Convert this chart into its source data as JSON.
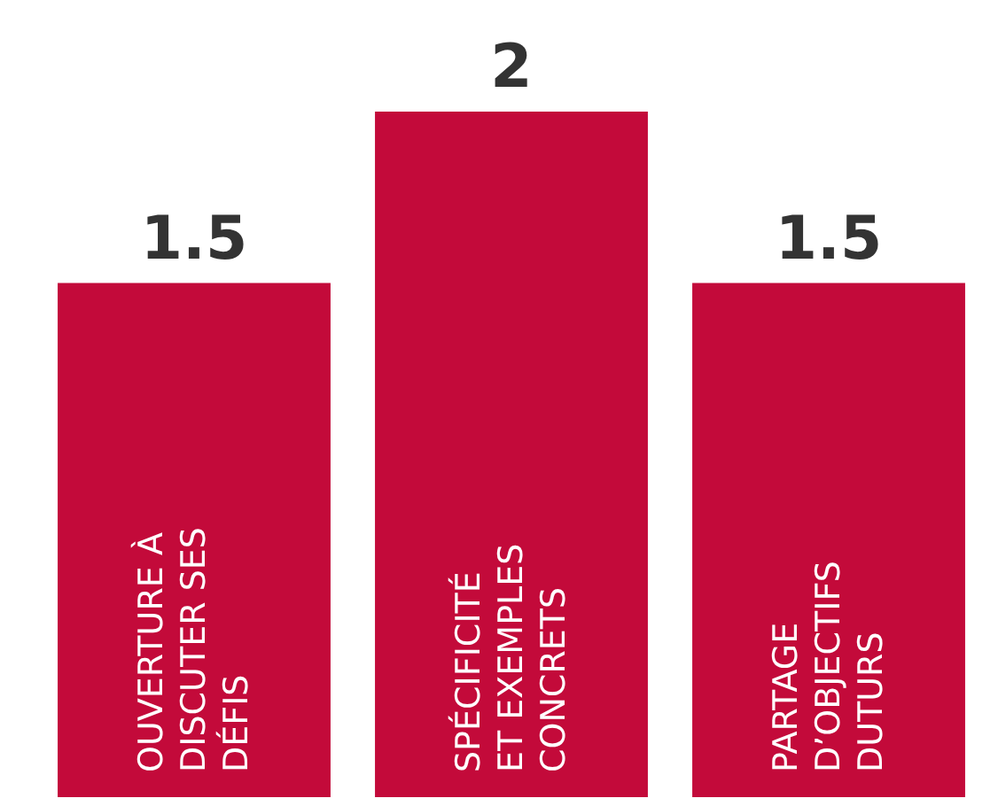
{
  "chart_data": {
    "type": "bar",
    "categories": [
      "OUVERTURE À\nDISCUTER SES\nDÉFIS",
      "SPÉCIFICITÉ\nET EXEMPLES\nCONCRETS",
      "PARTAGE\nD’OBJECTIFS\nDUTURS"
    ],
    "values": [
      1.5,
      2,
      1.5
    ],
    "color": "#c30a3a",
    "data_labels": true,
    "tick_labels": "x"
  }
}
